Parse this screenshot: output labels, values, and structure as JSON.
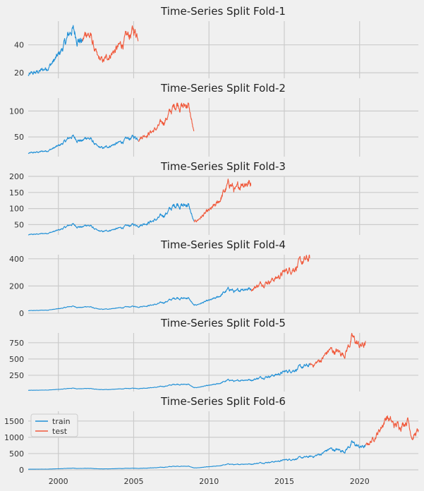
{
  "chart_data": {
    "type": "line",
    "series_names": [
      "train",
      "test"
    ],
    "colors": {
      "train": "#1f8fd6",
      "test": "#f0583a",
      "background": "#f0f0f0",
      "grid": "#cbcbcb"
    },
    "xlim": [
      1998.0,
      2023.9
    ],
    "xticks": [
      2000,
      2005,
      2010,
      2015,
      2020
    ],
    "xtick_labels": [
      "2000",
      "2005",
      "2010",
      "2015",
      "2020"
    ],
    "legend": {
      "location": "upper-left",
      "panel": 6,
      "entries": [
        "train",
        "test"
      ]
    },
    "panels": [
      {
        "title": "Time-Series Split Fold-1",
        "ylim": [
          16,
          57
        ],
        "yticks": [
          20,
          40
        ],
        "ytick_labels": [
          "20",
          "40"
        ],
        "train_range": [
          1998.0,
          2001.6
        ],
        "test_range": [
          2001.6,
          2005.3
        ]
      },
      {
        "title": "Time-Series Split Fold-2",
        "ylim": [
          12,
          125
        ],
        "yticks": [
          50,
          100
        ],
        "ytick_labels": [
          "50",
          "100"
        ],
        "train_range": [
          1998.0,
          2005.3
        ],
        "test_range": [
          2005.3,
          2009.0
        ]
      },
      {
        "title": "Time-Series Split Fold-3",
        "ylim": [
          18,
          200
        ],
        "yticks": [
          50,
          100,
          150,
          200
        ],
        "ytick_labels": [
          "50",
          "100",
          "150",
          "200"
        ],
        "train_range": [
          1998.0,
          2009.0
        ],
        "test_range": [
          2009.0,
          2012.8
        ]
      },
      {
        "title": "Time-Series Split Fold-4",
        "ylim": [
          0,
          430
        ],
        "yticks": [
          0,
          200,
          400
        ],
        "ytick_labels": [
          "0",
          "200",
          "400"
        ],
        "train_range": [
          1998.0,
          2012.8
        ],
        "test_range": [
          2012.8,
          2016.7
        ]
      },
      {
        "title": "Time-Series Split Fold-5",
        "ylim": [
          0,
          900
        ],
        "yticks": [
          250,
          500,
          750
        ],
        "ytick_labels": [
          "250",
          "500",
          "750"
        ],
        "train_range": [
          1998.0,
          2016.7
        ],
        "test_range": [
          2016.7,
          2020.4
        ]
      },
      {
        "title": "Time-Series Split Fold-6",
        "ylim": [
          0,
          1800
        ],
        "yticks": [
          0,
          500,
          1000,
          1500
        ],
        "ytick_labels": [
          "0",
          "500",
          "1000",
          "1500"
        ],
        "train_range": [
          1998.0,
          2020.4
        ],
        "test_range": [
          2020.4,
          2023.9
        ]
      }
    ],
    "price_anchors": [
      [
        1998.0,
        18
      ],
      [
        1998.5,
        20
      ],
      [
        1999.0,
        22
      ],
      [
        1999.5,
        26
      ],
      [
        2000.0,
        32
      ],
      [
        2000.5,
        42
      ],
      [
        2000.9,
        52
      ],
      [
        2001.2,
        46
      ],
      [
        2001.6,
        42
      ],
      [
        2001.9,
        50
      ],
      [
        2002.2,
        44
      ],
      [
        2002.6,
        30
      ],
      [
        2003.0,
        28
      ],
      [
        2003.5,
        34
      ],
      [
        2004.0,
        38
      ],
      [
        2004.5,
        44
      ],
      [
        2005.0,
        50
      ],
      [
        2005.3,
        48
      ],
      [
        2005.8,
        55
      ],
      [
        2006.5,
        65
      ],
      [
        2007.0,
        80
      ],
      [
        2007.5,
        100
      ],
      [
        2007.9,
        117
      ],
      [
        2008.3,
        108
      ],
      [
        2008.6,
        115
      ],
      [
        2008.85,
        80
      ],
      [
        2009.0,
        55
      ],
      [
        2009.5,
        75
      ],
      [
        2010.0,
        90
      ],
      [
        2010.5,
        110
      ],
      [
        2011.0,
        150
      ],
      [
        2011.4,
        180
      ],
      [
        2011.8,
        150
      ],
      [
        2012.2,
        185
      ],
      [
        2012.8,
        180
      ],
      [
        2013.0,
        190
      ],
      [
        2013.5,
        220
      ],
      [
        2014.0,
        240
      ],
      [
        2014.5,
        260
      ],
      [
        2015.0,
        300
      ],
      [
        2015.5,
        330
      ],
      [
        2016.0,
        360
      ],
      [
        2016.7,
        400
      ],
      [
        2017.0,
        420
      ],
      [
        2017.5,
        500
      ],
      [
        2018.0,
        640
      ],
      [
        2018.5,
        610
      ],
      [
        2019.0,
        580
      ],
      [
        2019.5,
        820
      ],
      [
        2020.0,
        700
      ],
      [
        2020.4,
        720
      ],
      [
        2020.8,
        900
      ],
      [
        2021.3,
        1200
      ],
      [
        2021.8,
        1650
      ],
      [
        2022.3,
        1350
      ],
      [
        2022.8,
        1400
      ],
      [
        2023.2,
        1580
      ],
      [
        2023.5,
        1000
      ],
      [
        2023.9,
        1200
      ]
    ]
  }
}
